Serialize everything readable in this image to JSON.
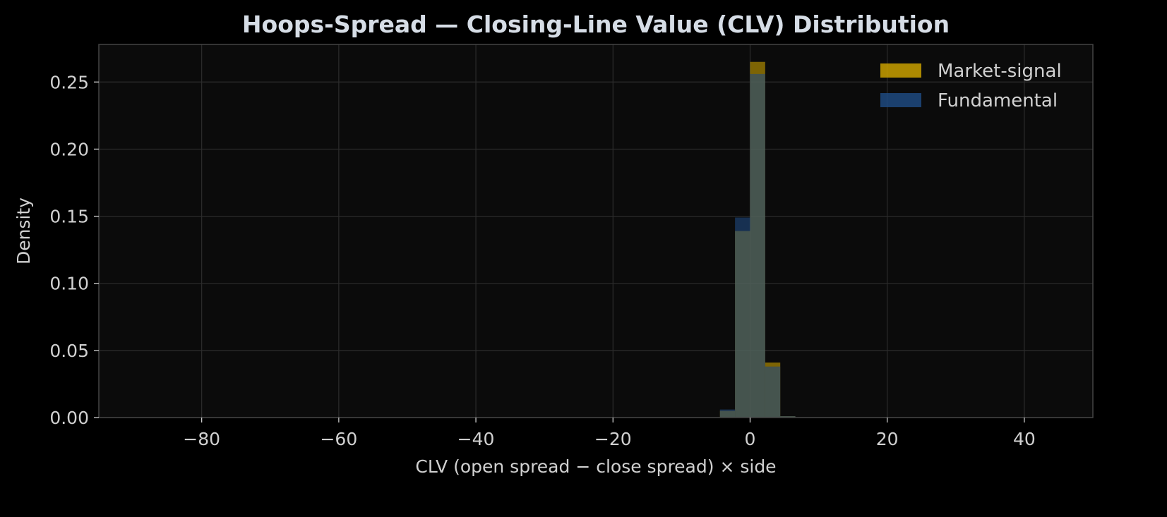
{
  "chart_data": {
    "type": "bar",
    "title": "Hoops-Spread — Closing-Line Value (CLV) Distribution",
    "xlabel": "CLV (open spread − close spread) × side",
    "ylabel": "Density",
    "xlim": [
      -95,
      50
    ],
    "ylim": [
      0,
      0.278
    ],
    "xticks": [
      -80,
      -60,
      -40,
      -20,
      0,
      20,
      40
    ],
    "xtick_labels": [
      "−80",
      "−60",
      "−40",
      "−20",
      "0",
      "20",
      "40"
    ],
    "yticks": [
      0,
      0.05,
      0.1,
      0.15,
      0.2,
      0.25
    ],
    "ytick_labels": [
      "0.00",
      "0.05",
      "0.10",
      "0.15",
      "0.20",
      "0.25"
    ],
    "grid": true,
    "legend_position": "top-right",
    "bin_width": 2.2,
    "bins": [
      -4.4,
      -2.2,
      0,
      2.2,
      4.4
    ],
    "series": [
      {
        "name": "Market-signal",
        "color": "#c9a000",
        "values": [
          0.005,
          0.139,
          0.265,
          0.041,
          0.001
        ]
      },
      {
        "name": "Fundamental",
        "color": "#1f4a80",
        "values": [
          0.006,
          0.149,
          0.256,
          0.038,
          0.001
        ]
      }
    ]
  }
}
